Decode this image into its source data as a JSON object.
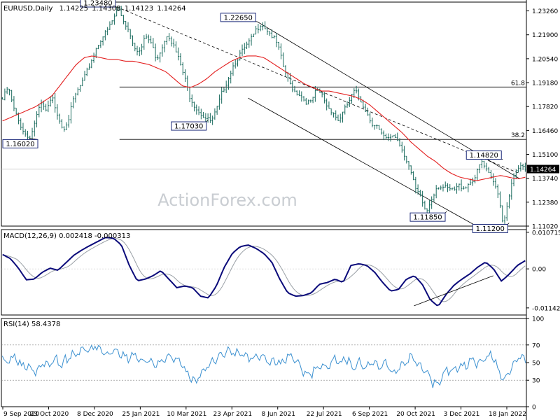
{
  "chart_data": [
    {
      "type": "bar",
      "panel": "price",
      "title": "EURUSD,Daily",
      "ohlc": {
        "open": "1.14225",
        "high": "1.14308",
        "low": "1.14123",
        "close": "1.14264"
      },
      "last_price_label": "1.14264",
      "last_price": 1.14264,
      "ylim": [
        1.1102,
        1.2376
      ],
      "y_ticks": [
        "1.23260",
        "1.21900",
        "1.20540",
        "1.19180",
        "1.17820",
        "1.16460",
        "1.15100",
        "1.13740",
        "1.12380",
        "1.11020"
      ],
      "x_ticks": [
        "9 Sep 2020",
        "23 Oct 2020",
        "8 Dec 2020",
        "25 Jan 2021",
        "10 Mar 2021",
        "23 Apr 2021",
        "8 Jun 2021",
        "22 Jul 2021",
        "6 Sep 2021",
        "20 Oct 2021",
        "3 Dec 2021",
        "18 Jan 2022"
      ],
      "price_path": [
        1.183,
        1.19,
        1.178,
        1.17,
        1.164,
        1.16,
        1.172,
        1.18,
        1.176,
        1.184,
        1.175,
        1.166,
        1.172,
        1.184,
        1.19,
        1.196,
        1.204,
        1.212,
        1.218,
        1.222,
        1.228,
        1.2348,
        1.228,
        1.222,
        1.213,
        1.21,
        1.219,
        1.215,
        1.206,
        1.213,
        1.221,
        1.214,
        1.206,
        1.196,
        1.185,
        1.179,
        1.175,
        1.172,
        1.1703,
        1.178,
        1.188,
        1.195,
        1.203,
        1.208,
        1.212,
        1.216,
        1.222,
        1.2265,
        1.223,
        1.219,
        1.214,
        1.202,
        1.193,
        1.188,
        1.186,
        1.182,
        1.181,
        1.188,
        1.186,
        1.179,
        1.176,
        1.171,
        1.176,
        1.182,
        1.188,
        1.183,
        1.177,
        1.17,
        1.168,
        1.162,
        1.16,
        1.163,
        1.159,
        1.152,
        1.144,
        1.132,
        1.127,
        1.1185,
        1.127,
        1.134,
        1.133,
        1.132,
        1.131,
        1.134,
        1.133,
        1.136,
        1.139,
        1.148,
        1.142,
        1.137,
        1.131,
        1.112,
        1.128,
        1.14,
        1.145,
        1.14264
      ],
      "moving_average_path": [
        1.17,
        1.172,
        1.174,
        1.176,
        1.178,
        1.181,
        1.184,
        1.19,
        1.196,
        1.202,
        1.206,
        1.207,
        1.206,
        1.205,
        1.205,
        1.204,
        1.204,
        1.203,
        1.202,
        1.2,
        1.198,
        1.194,
        1.19,
        1.189,
        1.191,
        1.194,
        1.198,
        1.201,
        1.204,
        1.206,
        1.207,
        1.207,
        1.206,
        1.203,
        1.2,
        1.197,
        1.194,
        1.191,
        1.189,
        1.187,
        1.187,
        1.186,
        1.185,
        1.184,
        1.182,
        1.179,
        1.175,
        1.171,
        1.167,
        1.163,
        1.158,
        1.154,
        1.15,
        1.147,
        1.143,
        1.14,
        1.138,
        1.137,
        1.136,
        1.137,
        1.138,
        1.139,
        1.138,
        1.137,
        1.138
      ],
      "annotations": [
        {
          "label": "1.23480",
          "x_frac": 0.22,
          "y": 1.2348,
          "box": "above"
        },
        {
          "label": "1.22650",
          "x_frac": 0.487,
          "y": 1.2265,
          "box": "above"
        },
        {
          "label": "1.17030",
          "x_frac": 0.393,
          "y": 1.1703,
          "box": "below"
        },
        {
          "label": "1.16020",
          "x_frac": 0.053,
          "y": 1.1602,
          "box": "below"
        },
        {
          "label": "1.14820",
          "x_frac": 0.955,
          "y": 1.1482,
          "box": "above"
        },
        {
          "label": "1.11850",
          "x_frac": 0.848,
          "y": 1.1185,
          "box": "below"
        },
        {
          "label": "1.11200",
          "x_frac": 0.967,
          "y": 1.112,
          "box": "below"
        }
      ],
      "fibonacci_levels": [
        {
          "label": "61.8",
          "y": 1.1893
        },
        {
          "label": "38.2",
          "y": 1.1595
        }
      ],
      "trend_lines": [
        {
          "from": [
            0.22,
            1.2348
          ],
          "to": [
            0.988,
            1.14
          ]
        },
        {
          "from": [
            0.487,
            1.2265
          ],
          "to": [
            0.988,
            1.137
          ]
        },
        {
          "from": [
            0.47,
            1.183
          ],
          "to": [
            0.905,
            1.1102
          ]
        }
      ],
      "watermark": "ActionForex.com",
      "colors": {
        "price": "#1a6b5e",
        "moving_average": "#e31e1e",
        "label_border": "#1c2a7a",
        "trend_line": "#000000"
      }
    },
    {
      "type": "line",
      "panel": "macd",
      "title": "MACD(12,26,9) 0.002418 -0.000313",
      "ylim": [
        -0.0135,
        0.0115
      ],
      "y_ticks": [
        "0.010715",
        "0.00",
        "-0.011424"
      ],
      "macd_path": [
        0.0042,
        0.003,
        0.0002,
        -0.0032,
        -0.003,
        -0.001,
        0.0002,
        -0.0004,
        0.0018,
        0.004,
        0.0055,
        0.0068,
        0.008,
        0.0092,
        0.009,
        0.007,
        0.001,
        -0.0035,
        -0.003,
        -0.002,
        -0.0005,
        -0.003,
        -0.0055,
        -0.005,
        -0.0055,
        -0.008,
        -0.0085,
        -0.005,
        0.0005,
        0.0045,
        0.0065,
        0.007,
        0.006,
        0.0045,
        0.002,
        -0.003,
        -0.007,
        -0.008,
        -0.0078,
        -0.007,
        -0.0045,
        -0.004,
        -0.003,
        -0.004,
        0.001,
        0.0015,
        0.001,
        -0.001,
        -0.004,
        -0.0065,
        -0.006,
        -0.003,
        -0.002,
        -0.0045,
        -0.009,
        -0.011,
        -0.0075,
        -0.0048,
        -0.003,
        -0.0015,
        0.0005,
        0.002,
        0.0,
        -0.0036,
        -0.0015,
        0.001,
        0.0024
      ],
      "support_line": {
        "from": [
          0.786,
          -0.0108
        ],
        "to": [
          0.937,
          -0.002
        ]
      },
      "colors": {
        "macd": "#0a0a7a",
        "signal": "#9aa0a6",
        "support": "#000000"
      }
    },
    {
      "type": "line",
      "panel": "rsi",
      "title": "RSI(14) 58.4378",
      "ylim": [
        0,
        100
      ],
      "y_ticks": [
        "100",
        "70",
        "50",
        "30",
        "0"
      ],
      "y_tick_values": [
        100,
        70,
        50,
        30,
        0
      ],
      "levels": [
        70,
        30
      ],
      "rsi_path": [
        55,
        52,
        60,
        47,
        50,
        42,
        55,
        53,
        58,
        52,
        60,
        64,
        70,
        67,
        72,
        65,
        62,
        68,
        60,
        58,
        62,
        52,
        55,
        50,
        53,
        60,
        57,
        54,
        38,
        32,
        38,
        50,
        55,
        62,
        67,
        66,
        64,
        60,
        58,
        62,
        55,
        53,
        50,
        58,
        57,
        47,
        38,
        42,
        50,
        45,
        57,
        52,
        56,
        48,
        55,
        47,
        56,
        48,
        52,
        40,
        50,
        53,
        62,
        48,
        45,
        30,
        28,
        46,
        42,
        50,
        47,
        56,
        50,
        58,
        62,
        40,
        32,
        48,
        62,
        58
      ],
      "colors": {
        "rsi": "#3b90d0",
        "level": "#808080"
      }
    }
  ]
}
